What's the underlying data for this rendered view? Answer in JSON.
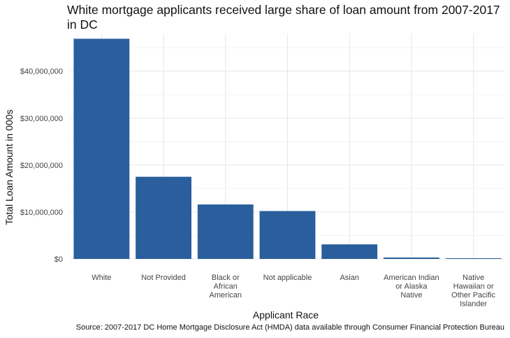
{
  "chart_data": {
    "type": "bar",
    "title": "White mortgage applicants received large share of loan amount from 2007-2017 in DC",
    "xlabel": "Applicant Race",
    "ylabel": "Total Loan Amount in 000s",
    "source": "Source: 2007-2017 DC Home Mortgage Disclosure Act (HMDA) data available through Consumer Financial Protection Bureau",
    "categories": [
      [
        "White"
      ],
      [
        "Not Provided"
      ],
      [
        "Black or",
        "African",
        "American"
      ],
      [
        "Not applicable"
      ],
      [
        "Asian"
      ],
      [
        "American Indian",
        "or Alaska",
        "Native"
      ],
      [
        "Native",
        "Hawaiian or",
        "Other Pacific",
        "Islander"
      ]
    ],
    "values": [
      46900000,
      17500000,
      11600000,
      10200000,
      3100000,
      300000,
      150000
    ],
    "yticks": [
      0,
      10000000,
      20000000,
      30000000,
      40000000
    ],
    "ytick_labels": [
      "$0",
      "$10,000,000",
      "$20,000,000",
      "$30,000,000",
      "$40,000,000"
    ],
    "ylim": [
      0,
      48000000
    ],
    "bar_color": "#2a5e9c",
    "grid": true
  }
}
